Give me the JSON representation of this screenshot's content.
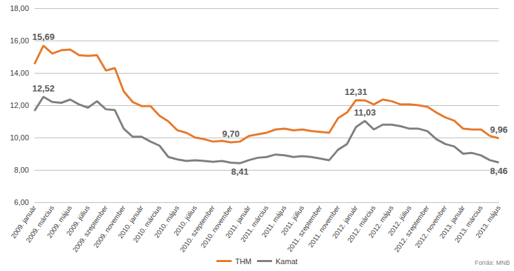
{
  "chart_data": {
    "type": "line",
    "categories": [
      "2009. január",
      null,
      "2009. március",
      null,
      "2009. május",
      null,
      "2009. július",
      null,
      "2009. szeptember",
      null,
      "2009. november",
      null,
      "2010. január",
      null,
      "2010. március",
      null,
      "2010. május",
      null,
      "2010. július",
      null,
      "2010. szeptember",
      null,
      "2010. november",
      null,
      "2011. január",
      null,
      "2011. március",
      null,
      "2011. május",
      null,
      "2011. július",
      null,
      "2011. szeptember",
      null,
      "2011. november",
      null,
      "2012. január",
      null,
      "2012. március",
      null,
      "2012. május",
      null,
      "2012. július",
      null,
      "2012. szeptember",
      null,
      "2012. november",
      null,
      "2013. január",
      null,
      "2013. március",
      null,
      "2013. május"
    ],
    "series": [
      {
        "name": "THM",
        "color": "#e8782a",
        "values": [
          14.55,
          15.69,
          15.2,
          15.4,
          15.45,
          15.1,
          15.05,
          15.1,
          14.15,
          14.3,
          12.85,
          12.2,
          11.95,
          11.95,
          11.35,
          11.0,
          10.45,
          10.3,
          10.0,
          9.9,
          9.75,
          9.8,
          9.7,
          9.75,
          10.1,
          10.2,
          10.3,
          10.5,
          10.55,
          10.45,
          10.5,
          10.4,
          10.35,
          10.3,
          11.2,
          11.55,
          12.31,
          12.3,
          12.05,
          12.35,
          12.25,
          12.05,
          12.05,
          12.0,
          11.9,
          11.55,
          11.25,
          11.05,
          10.55,
          10.5,
          10.5,
          10.1,
          9.96
        ],
        "value_labels": [
          null,
          "15,69",
          null,
          null,
          null,
          null,
          null,
          null,
          null,
          null,
          null,
          null,
          null,
          null,
          null,
          null,
          null,
          null,
          null,
          null,
          null,
          null,
          "9,70",
          null,
          null,
          null,
          null,
          null,
          null,
          null,
          null,
          null,
          null,
          null,
          null,
          null,
          "12,31",
          null,
          null,
          null,
          null,
          null,
          null,
          null,
          null,
          null,
          null,
          null,
          null,
          null,
          null,
          null,
          "9,96"
        ]
      },
      {
        "name": "Kamat",
        "color": "#7f7f7f",
        "values": [
          11.65,
          12.52,
          12.2,
          12.15,
          12.35,
          12.05,
          11.85,
          12.25,
          11.75,
          11.7,
          10.55,
          10.05,
          10.05,
          9.75,
          9.5,
          8.8,
          8.65,
          8.55,
          8.6,
          8.55,
          8.5,
          8.55,
          8.45,
          8.41,
          8.6,
          8.75,
          8.8,
          8.95,
          8.9,
          8.8,
          8.85,
          8.8,
          8.7,
          8.6,
          9.25,
          9.6,
          10.65,
          11.03,
          10.5,
          10.8,
          10.8,
          10.7,
          10.55,
          10.55,
          10.4,
          9.9,
          9.6,
          9.45,
          9.0,
          9.05,
          8.9,
          8.6,
          8.46
        ],
        "value_labels": [
          null,
          "12,52",
          null,
          null,
          null,
          null,
          null,
          null,
          null,
          null,
          null,
          null,
          null,
          null,
          null,
          null,
          null,
          null,
          null,
          null,
          null,
          null,
          null,
          "8,41",
          null,
          null,
          null,
          null,
          null,
          null,
          null,
          null,
          null,
          null,
          null,
          null,
          null,
          "11,03",
          null,
          null,
          null,
          null,
          null,
          null,
          null,
          null,
          null,
          null,
          null,
          null,
          null,
          null,
          "8,46"
        ]
      }
    ],
    "ylim": [
      6,
      18
    ],
    "yticks": [
      {
        "value": 6,
        "label": "6,00"
      },
      {
        "value": 8,
        "label": "8,00"
      },
      {
        "value": 10,
        "label": "10,00"
      },
      {
        "value": 12,
        "label": "12,00"
      },
      {
        "value": 14,
        "label": "14,00"
      },
      {
        "value": 16,
        "label": "16,00"
      },
      {
        "value": 18,
        "label": "18,00"
      }
    ],
    "grid": true,
    "legend": "bottom",
    "source": "Forrás: MNB"
  }
}
